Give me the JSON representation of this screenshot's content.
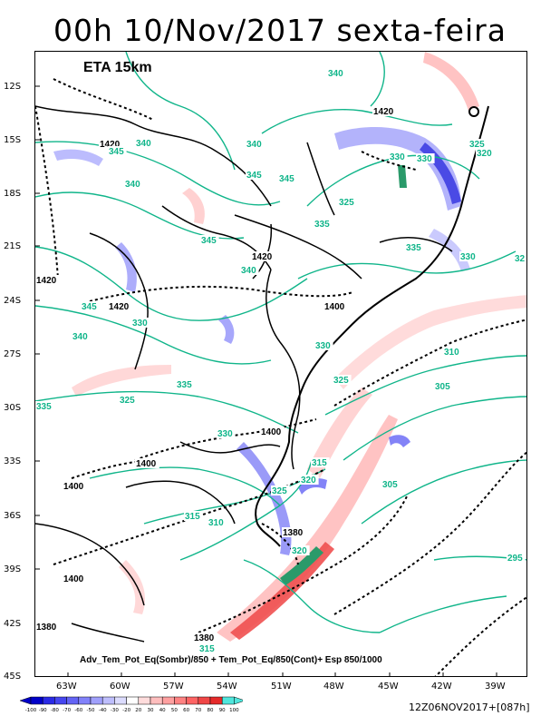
{
  "title": "00h 10/Nov/2017 sexta-feira",
  "model_label": "ETA 15km",
  "caption": "Adv_Tem_Pot_Eq(Sombr)/850 + Tem_Pot_Eq/850(Cont)+ Esp 850/1000",
  "run_label": "12Z06NOV2017+[087h]",
  "lat_ticks": [
    "12S",
    "15S",
    "18S",
    "21S",
    "24S",
    "27S",
    "30S",
    "33S",
    "36S",
    "39S",
    "42S",
    "45S"
  ],
  "lon_ticks": [
    "63W",
    "60W",
    "57W",
    "54W",
    "51W",
    "48W",
    "45W",
    "42W",
    "39W"
  ],
  "colorbar": {
    "labels": [
      "-100",
      "-90",
      "-80",
      "-70",
      "-60",
      "-50",
      "-40",
      "-30",
      "-20",
      "20",
      "30",
      "40",
      "50",
      "60",
      "70",
      "80",
      "90",
      "100"
    ],
    "colors": [
      "#0000c8",
      "#2a2ae6",
      "#4646f0",
      "#6464f5",
      "#8282fa",
      "#a0a0fc",
      "#bebefd",
      "#dcdcfe",
      "#ffffff",
      "#ffdcdc",
      "#ffbebe",
      "#ffa0a0",
      "#ff8282",
      "#ff6464",
      "#f04646",
      "#e62a2a",
      "#50e6dc"
    ]
  },
  "contour_labels": [
    {
      "text": "340",
      "kind": "theta"
    },
    {
      "text": "1420",
      "kind": "thick"
    },
    {
      "text": "1420",
      "kind": "thick"
    },
    {
      "text": "345",
      "kind": "theta"
    },
    {
      "text": "340",
      "kind": "theta"
    },
    {
      "text": "340",
      "kind": "theta"
    },
    {
      "text": "345",
      "kind": "theta"
    },
    {
      "text": "330",
      "kind": "theta"
    },
    {
      "text": "330",
      "kind": "theta"
    },
    {
      "text": "325",
      "kind": "theta"
    },
    {
      "text": "320",
      "kind": "theta"
    },
    {
      "text": "340",
      "kind": "theta"
    },
    {
      "text": "345",
      "kind": "theta"
    },
    {
      "text": "325",
      "kind": "theta"
    },
    {
      "text": "335",
      "kind": "theta"
    },
    {
      "text": "345",
      "kind": "theta"
    },
    {
      "text": "1420",
      "kind": "thick"
    },
    {
      "text": "335",
      "kind": "theta"
    },
    {
      "text": "330",
      "kind": "theta"
    },
    {
      "text": "32",
      "kind": "theta"
    },
    {
      "text": "1420",
      "kind": "thick"
    },
    {
      "text": "345",
      "kind": "theta"
    },
    {
      "text": "1420",
      "kind": "thick"
    },
    {
      "text": "340",
      "kind": "theta"
    },
    {
      "text": "1400",
      "kind": "thick"
    },
    {
      "text": "330",
      "kind": "theta"
    },
    {
      "text": "340",
      "kind": "theta"
    },
    {
      "text": "330",
      "kind": "theta"
    },
    {
      "text": "310",
      "kind": "theta"
    },
    {
      "text": "335",
      "kind": "theta"
    },
    {
      "text": "325",
      "kind": "theta"
    },
    {
      "text": "305",
      "kind": "theta"
    },
    {
      "text": "335",
      "kind": "theta"
    },
    {
      "text": "325",
      "kind": "theta"
    },
    {
      "text": "330",
      "kind": "theta"
    },
    {
      "text": "1400",
      "kind": "thick"
    },
    {
      "text": "1400",
      "kind": "thick"
    },
    {
      "text": "1400",
      "kind": "thick"
    },
    {
      "text": "315",
      "kind": "theta"
    },
    {
      "text": "320",
      "kind": "theta"
    },
    {
      "text": "325",
      "kind": "theta"
    },
    {
      "text": "305",
      "kind": "theta"
    },
    {
      "text": "315",
      "kind": "theta"
    },
    {
      "text": "310",
      "kind": "theta"
    },
    {
      "text": "1380",
      "kind": "thick"
    },
    {
      "text": "320",
      "kind": "theta"
    },
    {
      "text": "1400",
      "kind": "thick"
    },
    {
      "text": "295",
      "kind": "theta"
    },
    {
      "text": "1380",
      "kind": "thick"
    },
    {
      "text": "1380",
      "kind": "thick"
    },
    {
      "text": "315",
      "kind": "theta"
    }
  ]
}
